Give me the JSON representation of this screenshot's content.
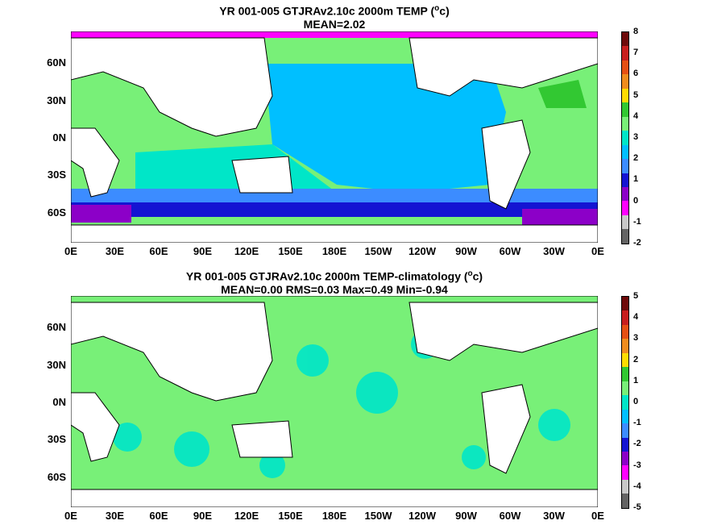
{
  "panels": [
    {
      "title_line1_pre": "YR 001-005 GTJRAv2.10c 2000m TEMP (",
      "title_sup": "o",
      "title_line1_post": "c)",
      "title_line2": "MEAN=2.02",
      "colorbar_ticks": [
        "8",
        "7",
        "6",
        "5",
        "4",
        "3",
        "2",
        "1",
        "0",
        "-1",
        "-2"
      ]
    },
    {
      "title_line1_pre": "YR 001-005 GTJRAv2.10c 2000m TEMP-climatology (",
      "title_sup": "o",
      "title_line1_post": "c)",
      "title_line2": "MEAN=0.00   RMS=0.03   Max=0.49   Min=-0.94",
      "colorbar_ticks": [
        "5",
        "4",
        "3",
        "2",
        "1",
        "0",
        "-1",
        "-2",
        "-3",
        "-4",
        "-5"
      ]
    }
  ],
  "lon_ticks": [
    "0E",
    "30E",
    "60E",
    "90E",
    "120E",
    "150E",
    "180E",
    "150W",
    "120W",
    "90W",
    "60W",
    "30W",
    "0E"
  ],
  "lat_ticks": [
    "60N",
    "30N",
    "0N",
    "30S",
    "60S"
  ],
  "colorbar_colors": [
    "#6e0a0a",
    "#c81e1e",
    "#e65014",
    "#f08c1e",
    "#ffdc00",
    "#32c832",
    "#78f078",
    "#00e6c8",
    "#00bfff",
    "#3c8cff",
    "#1414d2",
    "#8c00c8",
    "#ff00ff",
    "#c8c8c8",
    "#646464"
  ],
  "map_colors": {
    "land": "#ffffff",
    "coast": "#000000"
  }
}
